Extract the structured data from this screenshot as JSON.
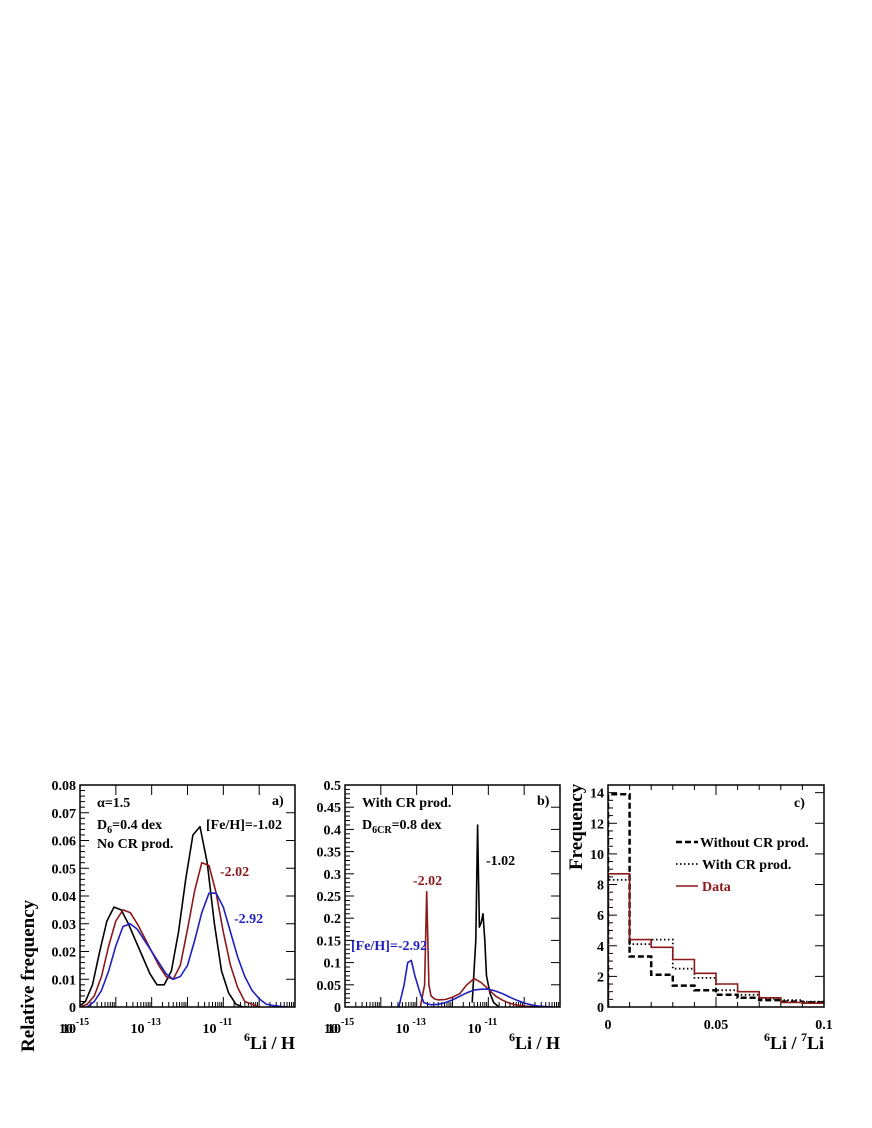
{
  "colors": {
    "black": "#000000",
    "darkred": "#8b1a1a",
    "blue": "#1f1fbf"
  },
  "chart_data": [
    {
      "panel": "a)",
      "type": "line",
      "xscale": "log",
      "xlim": [
        "1e-15",
        "1e-9"
      ],
      "ylim": [
        0,
        0.08
      ],
      "ylabel": "Relative frequency",
      "xlabel_prefix": "6",
      "xlabel_main": "Li / H",
      "yticks": [
        "0",
        "0.01",
        "0.02",
        "0.03",
        "0.04",
        "0.05",
        "0.06",
        "0.07",
        "0.08"
      ],
      "xtick_base": "10",
      "xtick_exps": [
        "-15",
        "-13",
        "-11"
      ],
      "annotations": {
        "alpha": "α=1.5",
        "d_main": "D",
        "d_sub": "6",
        "d_rest": "=0.4 dex",
        "cr": "No CR prod.",
        "feh": "[Fe/H]=-1.02",
        "m202": "-2.02",
        "m292": "-2.92"
      },
      "series": [
        {
          "name": "-1.02",
          "color": "black",
          "x": [
            -15.05,
            -14.85,
            -14.65,
            -14.45,
            -14.25,
            -14.05,
            -13.85,
            -13.65,
            -13.45,
            -13.25,
            -13.05,
            -12.85,
            -12.65,
            -12.45,
            -12.25,
            -12.05,
            -11.85,
            -11.65,
            -11.45,
            -11.25,
            -11.05,
            -10.85,
            -10.65,
            -10.45,
            -10.3
          ],
          "y": [
            0,
            0.002,
            0.008,
            0.02,
            0.031,
            0.036,
            0.035,
            0.03,
            0.024,
            0.018,
            0.012,
            0.008,
            0.008,
            0.013,
            0.027,
            0.046,
            0.062,
            0.065,
            0.052,
            0.03,
            0.013,
            0.005,
            0.001,
            0,
            0
          ]
        },
        {
          "name": "-2.02",
          "color": "darkred",
          "x": [
            -15.0,
            -14.8,
            -14.6,
            -14.4,
            -14.2,
            -14.0,
            -13.8,
            -13.6,
            -13.4,
            -13.2,
            -13.0,
            -12.8,
            -12.6,
            -12.4,
            -12.2,
            -12.0,
            -11.8,
            -11.6,
            -11.4,
            -11.2,
            -11.0,
            -10.8,
            -10.6,
            -10.4,
            -10.2,
            -10.0
          ],
          "y": [
            0,
            0.001,
            0.004,
            0.011,
            0.022,
            0.031,
            0.035,
            0.034,
            0.03,
            0.025,
            0.02,
            0.015,
            0.011,
            0.01,
            0.015,
            0.028,
            0.042,
            0.052,
            0.051,
            0.041,
            0.027,
            0.015,
            0.007,
            0.002,
            0.001,
            0
          ]
        },
        {
          "name": "-2.92",
          "color": "blue",
          "x": [
            -14.8,
            -14.6,
            -14.4,
            -14.2,
            -14.0,
            -13.8,
            -13.6,
            -13.4,
            -13.2,
            -13.0,
            -12.8,
            -12.6,
            -12.4,
            -12.2,
            -12.0,
            -11.8,
            -11.6,
            -11.4,
            -11.2,
            -11.0,
            -10.8,
            -10.6,
            -10.4,
            -10.2,
            -10.0,
            -9.8,
            -9.6,
            -9.4,
            -9.2
          ],
          "y": [
            0,
            0.002,
            0.006,
            0.013,
            0.022,
            0.029,
            0.03,
            0.028,
            0.024,
            0.02,
            0.016,
            0.012,
            0.01,
            0.011,
            0.015,
            0.024,
            0.034,
            0.041,
            0.041,
            0.036,
            0.027,
            0.018,
            0.011,
            0.006,
            0.003,
            0.001,
            0.0005,
            0.0002,
            0
          ]
        }
      ]
    },
    {
      "panel": "b)",
      "type": "line",
      "xscale": "log",
      "xlim": [
        "1e-15",
        "1e-9"
      ],
      "ylim": [
        0,
        0.5
      ],
      "xlabel_prefix": "6",
      "xlabel_main": "Li / H",
      "yticks": [
        "0",
        "0.05",
        "0.1",
        "0.15",
        "0.2",
        "0.25",
        "0.3",
        "0.35",
        "0.4",
        "0.45",
        "0.5"
      ],
      "xtick_base": "10",
      "xtick_exps": [
        "-15",
        "-13",
        "-11"
      ],
      "annotations": {
        "cr": "With CR prod.",
        "d_main": "D",
        "d_sub": "6CR",
        "d_rest": "=0.8 dex",
        "m102": "-1.02",
        "m202": "-2.02",
        "feh": "[Fe/H]=-2.92"
      },
      "series": [
        {
          "name": "-1.02",
          "color": "black",
          "x": [
            -11.45,
            -11.35,
            -11.3,
            -11.25,
            -11.2,
            -11.15,
            -11.1,
            -11.05,
            -10.95,
            -10.85,
            -10.7
          ],
          "y": [
            0.01,
            0.15,
            0.41,
            0.18,
            0.19,
            0.21,
            0.15,
            0.07,
            0.03,
            0.01,
            0
          ]
        },
        {
          "name": "-2.02",
          "color": "darkred",
          "x": [
            -12.9,
            -12.78,
            -12.72,
            -12.66,
            -12.6,
            -12.5,
            -12.4,
            -12.2,
            -12.0,
            -11.8,
            -11.6,
            -11.4,
            -11.2,
            -11.0,
            -10.8,
            -10.6,
            -10.4,
            -10.2,
            -10.0,
            -9.8,
            -9.6
          ],
          "y": [
            0,
            0.05,
            0.26,
            0.05,
            0.025,
            0.018,
            0.016,
            0.017,
            0.022,
            0.03,
            0.05,
            0.064,
            0.055,
            0.04,
            0.025,
            0.015,
            0.008,
            0.004,
            0.002,
            0.001,
            0
          ]
        },
        {
          "name": "-2.92",
          "color": "blue",
          "x": [
            -13.5,
            -13.35,
            -13.25,
            -13.15,
            -13.05,
            -12.9,
            -12.8,
            -12.6,
            -12.4,
            -12.2,
            -12.0,
            -11.8,
            -11.6,
            -11.4,
            -11.2,
            -11.0,
            -10.8,
            -10.6,
            -10.4,
            -10.2,
            -10.0,
            -9.8,
            -9.6,
            -9.4,
            -9.2
          ],
          "y": [
            0,
            0.05,
            0.1,
            0.105,
            0.07,
            0.03,
            0.01,
            0.005,
            0.006,
            0.01,
            0.016,
            0.024,
            0.032,
            0.038,
            0.04,
            0.04,
            0.036,
            0.03,
            0.022,
            0.015,
            0.009,
            0.005,
            0.002,
            0.001,
            0
          ]
        }
      ]
    },
    {
      "panel": "c)",
      "type": "step",
      "xlim": [
        0,
        0.1
      ],
      "ylim": [
        0,
        14.5
      ],
      "ylabel": "Frequency",
      "xlabel_sup1": "6",
      "xlabel_mid": "Li / ",
      "xlabel_sup2": "7",
      "xlabel_end": "Li",
      "yticks": [
        "0",
        "2",
        "4",
        "6",
        "8",
        "10",
        "12",
        "14"
      ],
      "xticks": [
        "0",
        "0.05",
        "0.1"
      ],
      "bin_edges": [
        0,
        0.01,
        0.02,
        0.03,
        0.04,
        0.05,
        0.06,
        0.07,
        0.08,
        0.09,
        0.1
      ],
      "series": [
        {
          "name": "Without CR prod.",
          "color": "black",
          "style": "dashed",
          "values": [
            13.9,
            3.3,
            2.1,
            1.4,
            1.1,
            0.8,
            0.6,
            0.45,
            0.35,
            0.3
          ]
        },
        {
          "name": "With CR prod.",
          "color": "black",
          "style": "dotted",
          "values": [
            8.3,
            4.1,
            4.4,
            2.5,
            1.9,
            1.1,
            0.8,
            0.55,
            0.45,
            0.35
          ]
        },
        {
          "name": "Data",
          "color": "darkred",
          "style": "solid",
          "values": [
            8.7,
            4.4,
            3.9,
            3.1,
            2.2,
            1.5,
            1.0,
            0.6,
            0.3,
            0.25
          ]
        }
      ]
    }
  ]
}
